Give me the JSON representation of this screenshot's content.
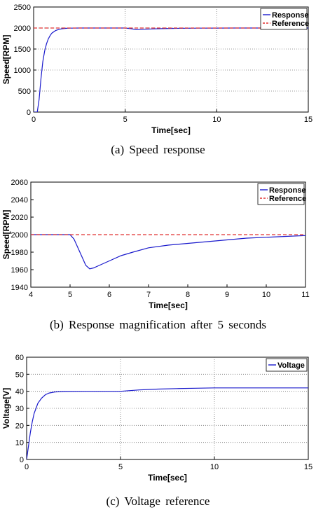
{
  "chart_data": [
    {
      "type": "line",
      "caption": "(a)  Speed  response",
      "xlabel": "Time[sec]",
      "ylabel": "Speed[RPM]",
      "xlim": [
        0,
        15
      ],
      "ylim": [
        0,
        2500
      ],
      "xticks": [
        "0",
        "5",
        "10",
        "15"
      ],
      "yticks": [
        "0",
        "500",
        "1000",
        "1500",
        "2000",
        "2500"
      ],
      "grid": true,
      "legend_position": "top-right",
      "series": [
        {
          "name": "Response",
          "color": "#1a1acc",
          "style": "solid",
          "x": [
            0,
            0.2,
            0.3,
            0.4,
            0.5,
            0.6,
            0.7,
            0.8,
            0.9,
            1.0,
            1.2,
            1.4,
            1.6,
            1.8,
            2.0,
            2.5,
            3.0,
            3.5,
            4.0,
            4.5,
            5.0,
            5.3,
            5.6,
            6.0,
            6.5,
            7.0,
            7.5,
            8.0,
            8.5,
            9.0,
            10.0,
            11.0,
            12.0,
            13.0,
            14.0,
            15.0
          ],
          "y": [
            0,
            0,
            300,
            800,
            1200,
            1450,
            1620,
            1740,
            1820,
            1880,
            1940,
            1970,
            1985,
            1993,
            1997,
            2000,
            2000,
            2000,
            2000,
            2000,
            2000,
            1985,
            1962,
            1970,
            1978,
            1985,
            1990,
            1993,
            1995,
            1997,
            1999,
            2000,
            2000,
            2000,
            2000,
            2000
          ]
        },
        {
          "name": "Reference",
          "color": "#e03030",
          "style": "dashed",
          "x": [
            0,
            15
          ],
          "y": [
            2000,
            2000
          ]
        }
      ]
    },
    {
      "type": "line",
      "caption": "(b)  Response  magnification  after  5  seconds",
      "xlabel": "Time[sec]",
      "ylabel": "Speed[RPM]",
      "xlim": [
        4,
        11
      ],
      "ylim": [
        1940,
        2060
      ],
      "xticks": [
        "4",
        "5",
        "6",
        "7",
        "8",
        "9",
        "10",
        "11"
      ],
      "yticks": [
        "1940",
        "1960",
        "1980",
        "2000",
        "2020",
        "2040",
        "2060"
      ],
      "grid": false,
      "legend_position": "top-right",
      "series": [
        {
          "name": "Response",
          "color": "#1a1acc",
          "style": "solid",
          "x": [
            4.0,
            4.5,
            5.0,
            5.1,
            5.2,
            5.3,
            5.4,
            5.5,
            5.6,
            5.8,
            6.0,
            6.3,
            6.6,
            7.0,
            7.5,
            8.0,
            8.5,
            9.0,
            9.5,
            10.0,
            10.5,
            11.0
          ],
          "y": [
            2000,
            2000,
            2000,
            1995,
            1985,
            1975,
            1965,
            1961,
            1962,
            1966,
            1970,
            1976,
            1980,
            1985,
            1988,
            1990,
            1992,
            1994,
            1996,
            1997,
            1998,
            1999
          ]
        },
        {
          "name": "Reference",
          "color": "#e03030",
          "style": "dashed",
          "x": [
            4,
            11
          ],
          "y": [
            2000,
            2000
          ]
        }
      ]
    },
    {
      "type": "line",
      "caption": "(c)  Voltage  reference",
      "xlabel": "Time[sec]",
      "ylabel": "Voltage[V]",
      "xlim": [
        0,
        15
      ],
      "ylim": [
        0,
        60
      ],
      "xticks": [
        "0",
        "5",
        "10",
        "15"
      ],
      "yticks": [
        "0",
        "10",
        "20",
        "30",
        "40",
        "50",
        "60"
      ],
      "grid": true,
      "legend_position": "top-right",
      "series": [
        {
          "name": "Voltage",
          "color": "#1a1acc",
          "style": "solid",
          "x": [
            0,
            0.1,
            0.2,
            0.3,
            0.4,
            0.5,
            0.6,
            0.8,
            1.0,
            1.2,
            1.5,
            2.0,
            3.0,
            4.0,
            5.0,
            6.0,
            7.0,
            8.0,
            9.0,
            10.0,
            12.0,
            15.0
          ],
          "y": [
            0,
            8,
            16,
            22,
            27,
            30,
            33,
            36,
            38,
            39,
            39.6,
            39.9,
            40,
            40,
            40,
            40.8,
            41.3,
            41.6,
            41.8,
            42,
            42,
            42
          ]
        }
      ]
    }
  ]
}
